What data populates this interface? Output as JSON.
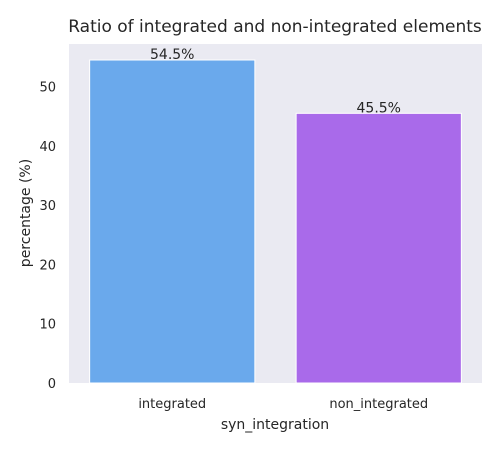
{
  "chart_data": {
    "type": "bar",
    "title": "Ratio of integrated and non-integrated elements",
    "xlabel": "syn_integration",
    "ylabel": "percentage (%)",
    "categories": [
      "integrated",
      "non_integrated"
    ],
    "values": [
      54.5,
      45.5
    ],
    "data_labels": [
      "54.5%",
      "45.5%"
    ],
    "colors": [
      "#6aa9ec",
      "#a96aea"
    ],
    "ylim": [
      0,
      57.2
    ],
    "yticks": [
      0,
      10,
      20,
      30,
      40,
      50
    ],
    "ytick_labels": [
      "0",
      "10",
      "20",
      "30",
      "40",
      "50"
    ],
    "grid": false,
    "legend": "none",
    "background": "#eaeaf2"
  }
}
